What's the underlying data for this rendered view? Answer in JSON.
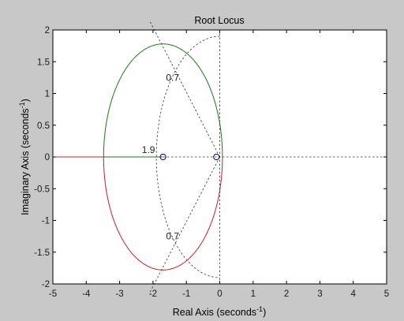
{
  "chart_data": {
    "type": "line",
    "title": "Root Locus",
    "xlabel_main": "Real Axis (seconds",
    "xlabel_sup": "-1",
    "xlabel_tail": ")",
    "ylabel_main": "Imaginary Axis (seconds",
    "ylabel_sup": "-1",
    "ylabel_tail": ")",
    "xlim": [
      -5,
      5
    ],
    "ylim": [
      -2,
      2
    ],
    "x_ticks": [
      -5,
      -4,
      -3,
      -2,
      -1,
      0,
      1,
      2,
      3,
      4,
      5
    ],
    "x_tick_labels": [
      "-5",
      "-4",
      "-3",
      "-2",
      "-1",
      "0",
      "1",
      "2",
      "3",
      "4",
      "5"
    ],
    "y_ticks": [
      -2,
      -1.5,
      -1,
      -0.5,
      0,
      0.5,
      1,
      1.5,
      2
    ],
    "y_tick_labels": [
      "-2",
      "-1.5",
      "-1",
      "-0.5",
      "0",
      "0.5",
      "1",
      "1.5",
      "2"
    ],
    "grid": false,
    "branch_colors": [
      "#1a7a1a",
      "#cc1f1f"
    ],
    "locus_circle": {
      "center": [
        -1.7,
        0
      ],
      "radius": 1.78
    },
    "breakaway_point": [
      -3.48,
      0
    ],
    "real_axis_branch": {
      "from": [
        -5,
        0
      ],
      "to": [
        -3.48,
        0
      ]
    },
    "real_axis_segment_color": "#cc1f1f",
    "real_axis_overlay": {
      "from": [
        -3.48,
        0
      ],
      "to": [
        -1.7,
        0
      ],
      "color": "#1a7a1a"
    },
    "zeros": [
      [
        -1.7,
        0
      ],
      [
        -0.1,
        0
      ]
    ],
    "damping_lines": [
      0.7
    ],
    "damping_labels": [
      "0.7",
      "0.7"
    ],
    "frequency_circles": [
      1.9
    ],
    "frequency_labels": [
      "1.9"
    ]
  }
}
